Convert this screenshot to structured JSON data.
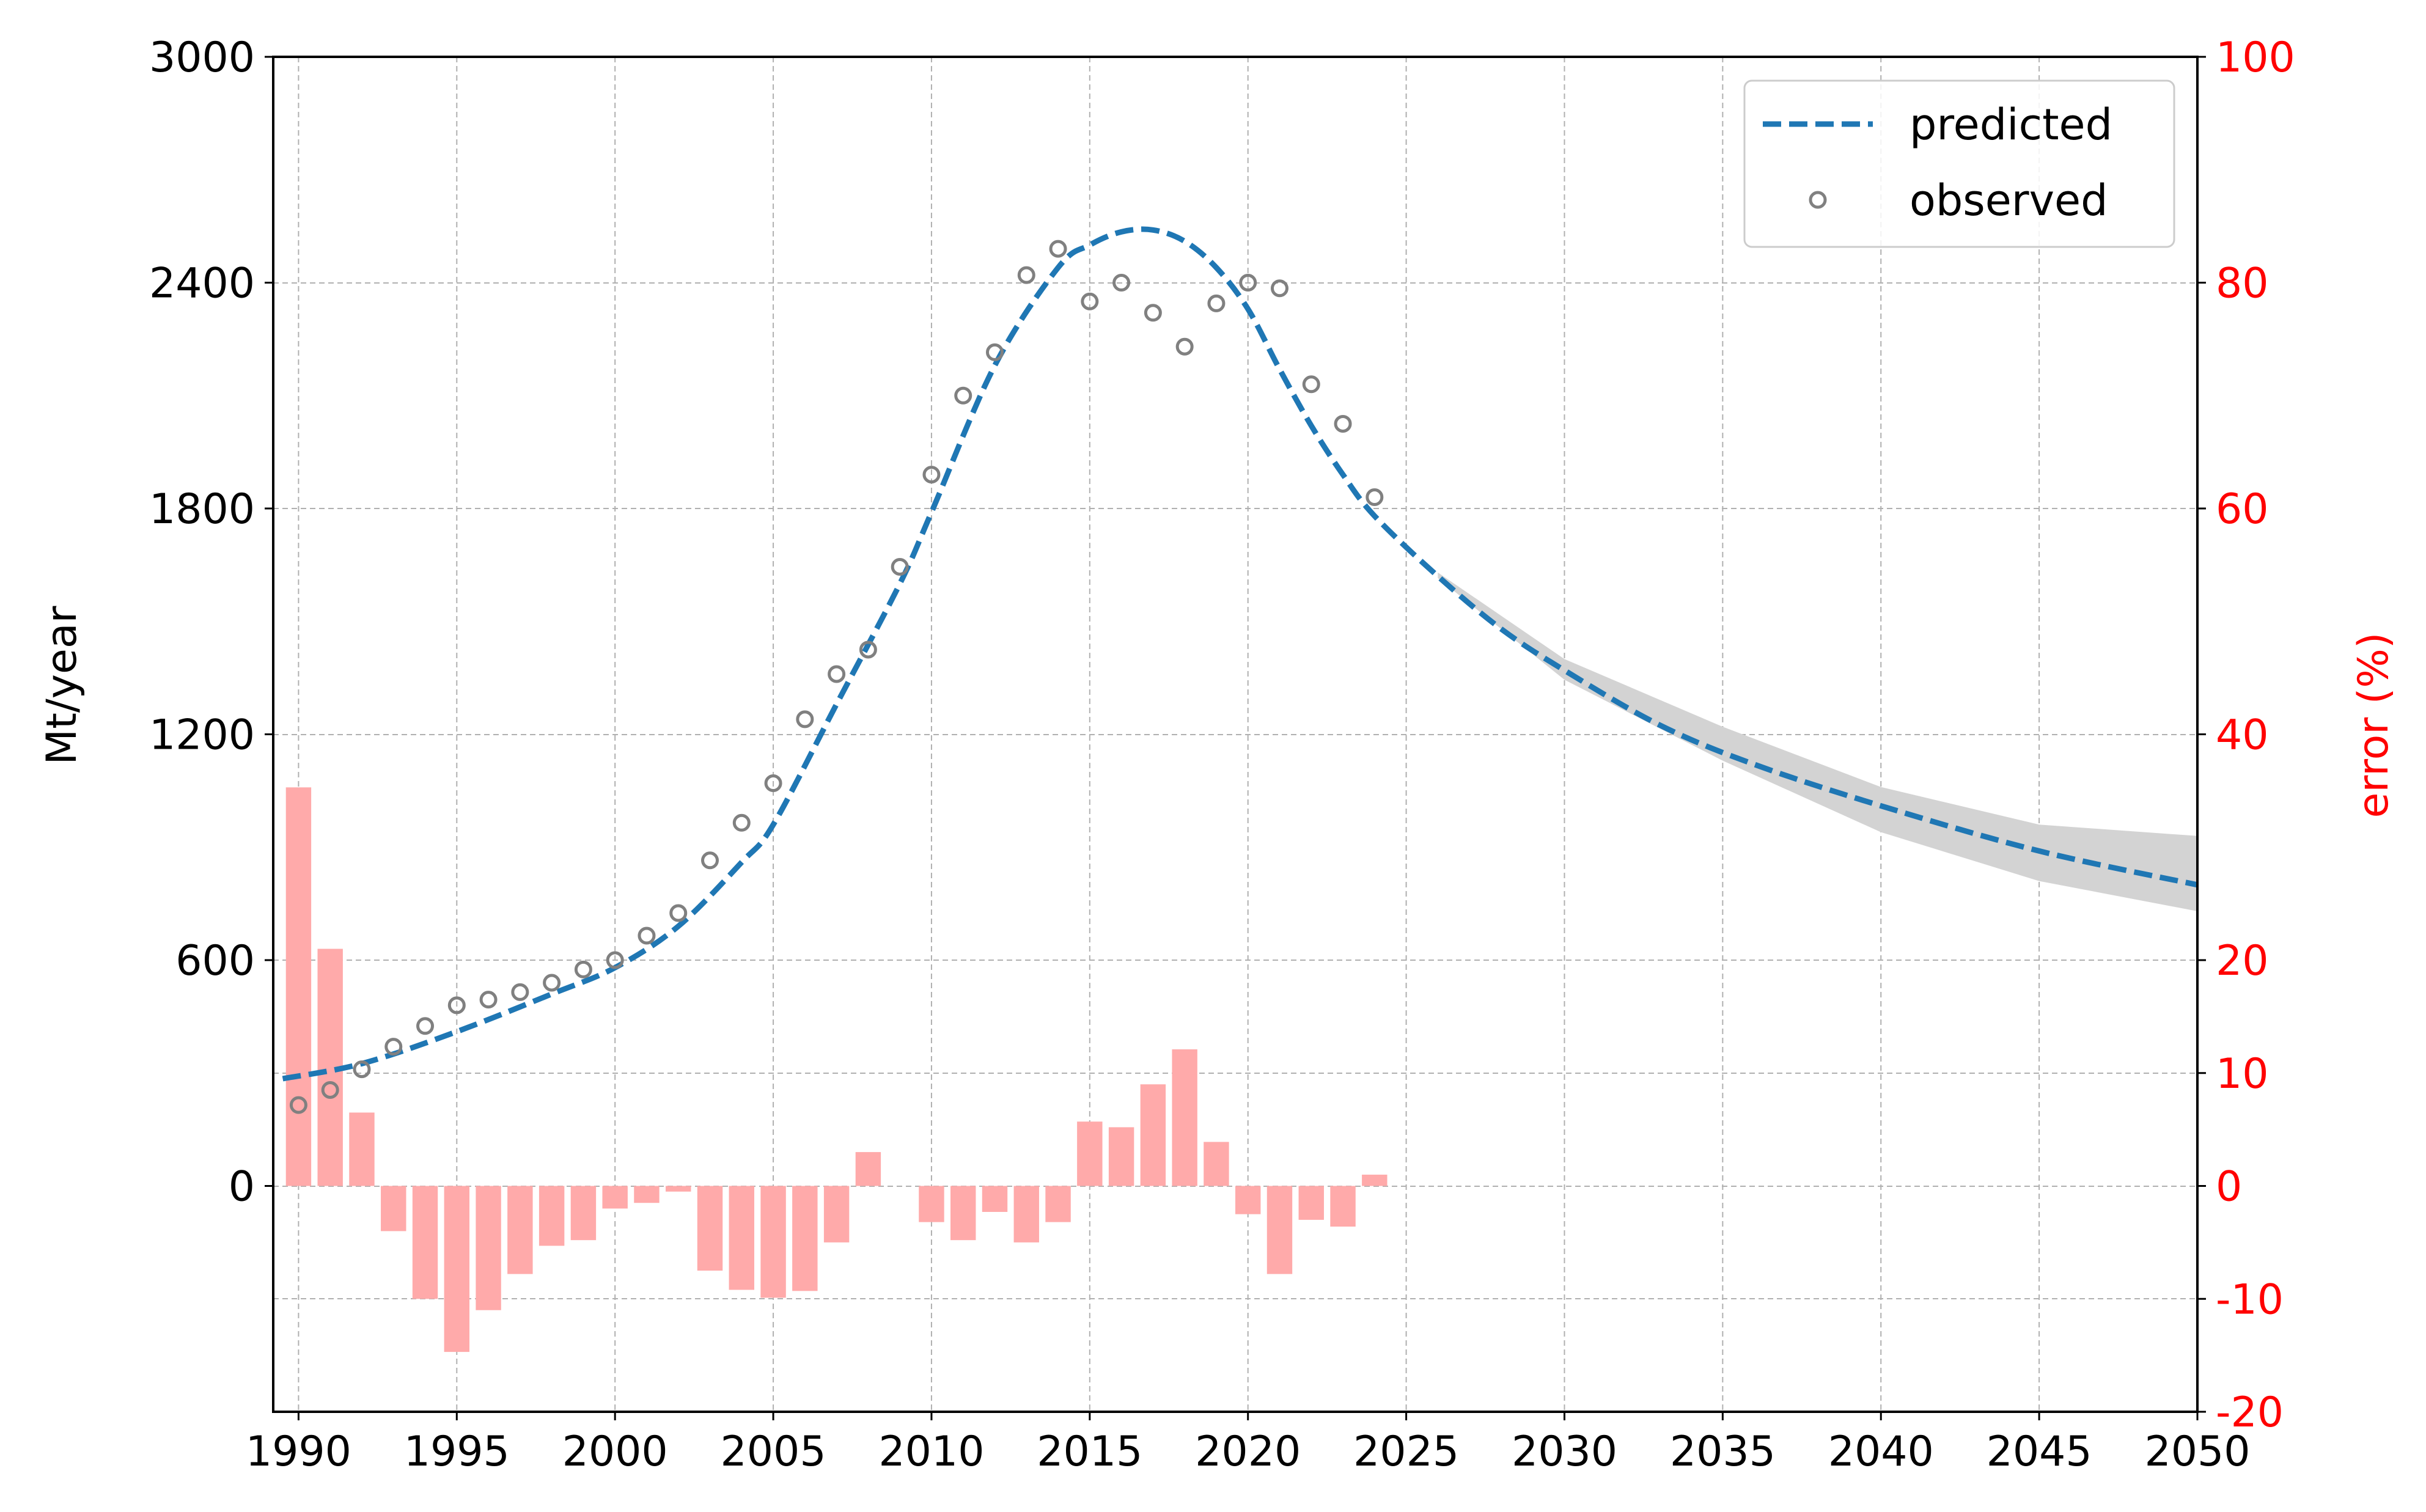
{
  "chart_data": {
    "type": "line",
    "title": "",
    "xlabel": "",
    "ylabel": "Mt/year",
    "y2label": "error (%)",
    "xlim": [
      1989.2,
      2050
    ],
    "ylim": [
      -600,
      3000
    ],
    "y2lim": [
      -20,
      100
    ],
    "x_ticks": [
      1990,
      1995,
      2000,
      2005,
      2010,
      2015,
      2020,
      2025,
      2030,
      2035,
      2040,
      2045,
      2050
    ],
    "y_ticks": [
      0,
      600,
      1200,
      1800,
      2400,
      3000
    ],
    "y2_ticks": [
      -20,
      -10,
      0,
      10,
      20,
      40,
      60,
      80,
      100
    ],
    "grid": true,
    "legend_position": "top-right",
    "colors": {
      "predicted": "#1f77b4",
      "observed": "#808080",
      "error": "#ffaaaa",
      "band": "#d3d3d3",
      "error_axis": "#ff0000"
    },
    "series": [
      {
        "name": "predicted",
        "style": "dashed",
        "x": [
          1989.5,
          1992,
          1995,
          1998,
          2000,
          2002,
          2004,
          2005,
          2007,
          2009,
          2010,
          2012,
          2014,
          2015,
          2016,
          2017,
          2018,
          2019,
          2020,
          2021,
          2022,
          2023,
          2024,
          2026,
          2028,
          2030,
          2033,
          2036,
          2040,
          2045,
          2050
        ],
        "values": [
          285,
          325,
          410,
          510,
          580,
          690,
          860,
          960,
          1280,
          1600,
          1790,
          2180,
          2440,
          2500,
          2535,
          2540,
          2510,
          2440,
          2330,
          2170,
          2020,
          1890,
          1780,
          1620,
          1480,
          1370,
          1225,
          1120,
          1010,
          890,
          800
        ]
      },
      {
        "name": "observed",
        "style": "markers",
        "x": [
          1990,
          1991,
          1992,
          1993,
          1994,
          1995,
          1996,
          1997,
          1998,
          1999,
          2000,
          2001,
          2002,
          2003,
          2004,
          2005,
          2006,
          2007,
          2008,
          2009,
          2010,
          2011,
          2012,
          2013,
          2014,
          2015,
          2016,
          2017,
          2018,
          2019,
          2020,
          2021,
          2022,
          2023,
          2024
        ],
        "values": [
          215,
          255,
          310,
          370,
          425,
          480,
          495,
          515,
          540,
          575,
          600,
          665,
          725,
          865,
          965,
          1070,
          1240,
          1360,
          1425,
          1645,
          1890,
          2100,
          2215,
          2420,
          2490,
          2350,
          2400,
          2320,
          2230,
          2345,
          2400,
          2385,
          2130,
          2025,
          1830
        ]
      },
      {
        "name": "uncertainty",
        "style": "band",
        "x": [
          2026,
          2030,
          2035,
          2040,
          2045,
          2050
        ],
        "lower": [
          1615,
          1345,
          1130,
          940,
          810,
          730
        ],
        "upper": [
          1630,
          1400,
          1220,
          1060,
          960,
          930
        ]
      },
      {
        "name": "error",
        "style": "bars",
        "axis": "right",
        "x": [
          1990,
          1991,
          1992,
          1993,
          1994,
          1995,
          1996,
          1997,
          1998,
          1999,
          2000,
          2001,
          2002,
          2003,
          2004,
          2005,
          2006,
          2007,
          2008,
          2009,
          2010,
          2011,
          2012,
          2013,
          2014,
          2015,
          2016,
          2017,
          2018,
          2019,
          2020,
          2021,
          2022,
          2023,
          2024
        ],
        "values": [
          35.3,
          21.0,
          6.5,
          -4.0,
          -10.0,
          -14.7,
          -11.0,
          -7.8,
          -5.3,
          -4.8,
          -2.0,
          -1.5,
          -0.5,
          -7.5,
          -9.2,
          -9.9,
          -9.3,
          -5.0,
          3.0,
          0,
          -3.2,
          -4.8,
          -2.3,
          -5.0,
          -3.2,
          5.7,
          5.2,
          9.0,
          12.1,
          3.9,
          -2.5,
          -7.8,
          -3.0,
          -3.6,
          1.0
        ]
      }
    ],
    "legend": [
      {
        "label": "predicted",
        "marker": "dashed-line"
      },
      {
        "label": "observed",
        "marker": "hollow-circle"
      }
    ]
  }
}
